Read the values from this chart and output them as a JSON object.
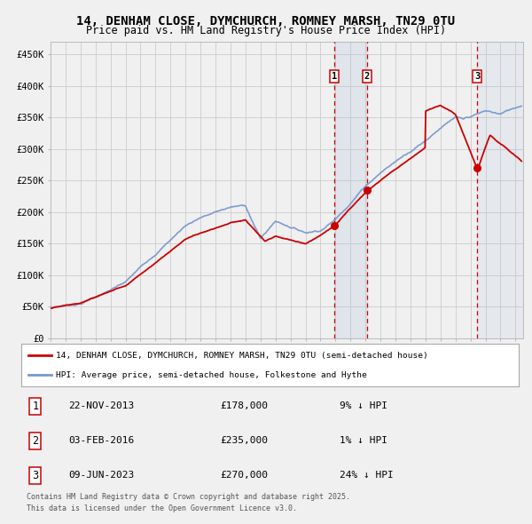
{
  "title": "14, DENHAM CLOSE, DYMCHURCH, ROMNEY MARSH, TN29 0TU",
  "subtitle": "Price paid vs. HM Land Registry's House Price Index (HPI)",
  "bg_color": "#f0f0f0",
  "plot_bg_color": "#f0f0f0",
  "grid_color": "#cccccc",
  "red_line_color": "#cc0000",
  "blue_line_color": "#7799cc",
  "sale_marker_color": "#cc0000",
  "ylim": [
    0,
    470000
  ],
  "yticks": [
    0,
    50000,
    100000,
    150000,
    200000,
    250000,
    300000,
    350000,
    400000,
    450000
  ],
  "ytick_labels": [
    "£0",
    "£50K",
    "£100K",
    "£150K",
    "£200K",
    "£250K",
    "£300K",
    "£350K",
    "£400K",
    "£450K"
  ],
  "xlim_start": 1995.0,
  "xlim_end": 2026.5,
  "sale1_date": 2013.9,
  "sale1_price": 178000,
  "sale1_label": "1",
  "sale1_display": "22-NOV-2013",
  "sale1_text": "£178,000",
  "sale1_pct": "9% ↓ HPI",
  "sale2_date": 2016.08,
  "sale2_price": 235000,
  "sale2_label": "2",
  "sale2_display": "03-FEB-2016",
  "sale2_text": "£235,000",
  "sale2_pct": "1% ↓ HPI",
  "sale3_date": 2023.44,
  "sale3_price": 270000,
  "sale3_label": "3",
  "sale3_display": "09-JUN-2023",
  "sale3_text": "£270,000",
  "sale3_pct": "24% ↓ HPI",
  "legend_line1": "14, DENHAM CLOSE, DYMCHURCH, ROMNEY MARSH, TN29 0TU (semi-detached house)",
  "legend_line2": "HPI: Average price, semi-detached house, Folkestone and Hythe",
  "footer1": "Contains HM Land Registry data © Crown copyright and database right 2025.",
  "footer2": "This data is licensed under the Open Government Licence v3.0."
}
